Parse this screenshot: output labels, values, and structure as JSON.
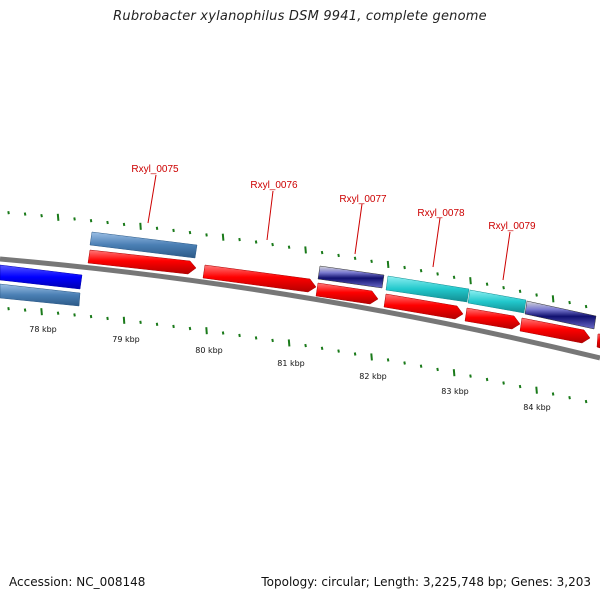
{
  "title": "Rubrobacter xylanophilus DSM 9941, complete genome",
  "footer": {
    "accession": "Accession: NC_008148",
    "summary": "Topology: circular; Length: 3,225,748 bp; Genes: 3,203"
  },
  "kbp_labels": [
    "78 kbp",
    "79 kbp",
    "80 kbp",
    "81 kbp",
    "82 kbp",
    "83 kbp",
    "84 kbp"
  ],
  "gene_labels": [
    "Rxyl_0075",
    "Rxyl_0076",
    "Rxyl_0077",
    "Rxyl_0078",
    "Rxyl_0079"
  ],
  "colors": {
    "backbone": "#8a8a8a",
    "cds": "#ff0000",
    "blue": "#0000ff",
    "steel": "#4a7fb4",
    "navy": "#1a1a80",
    "cyan": "#22c8cc",
    "tick": "#1a7a1a",
    "label": "#cc0000"
  }
}
